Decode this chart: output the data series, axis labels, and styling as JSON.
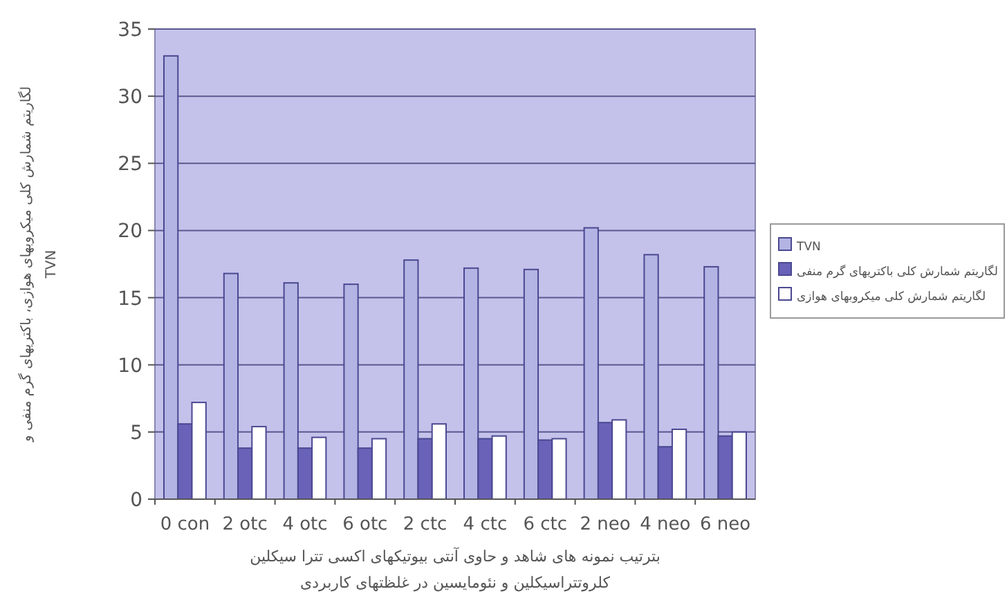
{
  "chart_data": {
    "type": "bar",
    "xlabel": "بترتیب نمونه های شاهد و حاوی آنتی بیوتیکهای اکسی تترا سیکلین\nکلروتتراسیکلین و نئومایسین در غلظتهای کاربردی",
    "ylabel": "لگاریتم شمارش کلی میکروبهای هوازی، باکتریهای گرم منفی و\nTVN",
    "categories": [
      "0 con",
      "2 otc",
      "4 otc",
      "6 otc",
      "2 ctc",
      "4 ctc",
      "6 ctc",
      "2 neo",
      "4 neo",
      "6 neo"
    ],
    "series": [
      {
        "name": "TVN",
        "color": "#b4b4e4",
        "values": [
          33,
          16.8,
          16.1,
          16.0,
          17.8,
          17.2,
          17.1,
          20.2,
          18.2,
          17.3
        ]
      },
      {
        "name": "لگاریتم شمارش کلی باکتریهای گرم منفی",
        "color": "#6a62b8",
        "values": [
          5.6,
          3.8,
          3.8,
          3.8,
          4.5,
          4.5,
          4.4,
          5.7,
          3.9,
          4.7
        ]
      },
      {
        "name": "لگاریتم شمارش کلی میکروبهای هوازی",
        "color": "#ffffff",
        "values": [
          7.2,
          5.4,
          4.6,
          4.5,
          5.6,
          4.7,
          4.5,
          5.9,
          5.2,
          5.0
        ]
      }
    ],
    "ylim": [
      0,
      35
    ],
    "yticks": [
      0,
      5,
      10,
      15,
      20,
      25,
      30,
      35
    ],
    "grid": "y",
    "legend": "right"
  }
}
